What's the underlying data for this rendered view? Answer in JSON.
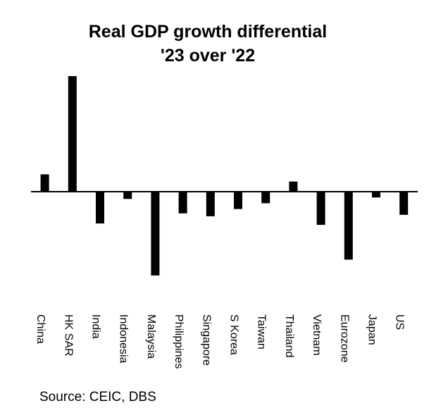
{
  "chart_data": {
    "type": "bar",
    "title": "Real GDP growth differential",
    "subtitle": "'23 over '22",
    "xlabel": "",
    "ylabel": "",
    "y_axis_shown": false,
    "grid": false,
    "legend": "none",
    "bar_color": "#000000",
    "categories": [
      "China",
      "HK SAR",
      "India",
      "Indonesia",
      "Malaysia",
      "Philippines",
      "Singapore",
      "S Korea",
      "Taiwan",
      "Thailand",
      "Vietnam",
      "Eurozone",
      "Japan",
      "US"
    ],
    "values": [
      1.2,
      8.0,
      -2.2,
      -0.5,
      -5.8,
      -1.5,
      -1.7,
      -1.2,
      -0.8,
      0.7,
      -2.3,
      -4.7,
      -0.4,
      -1.6
    ],
    "ylim": [
      -6.4,
      8.4
    ]
  },
  "source": "Source: CEIC, DBS"
}
